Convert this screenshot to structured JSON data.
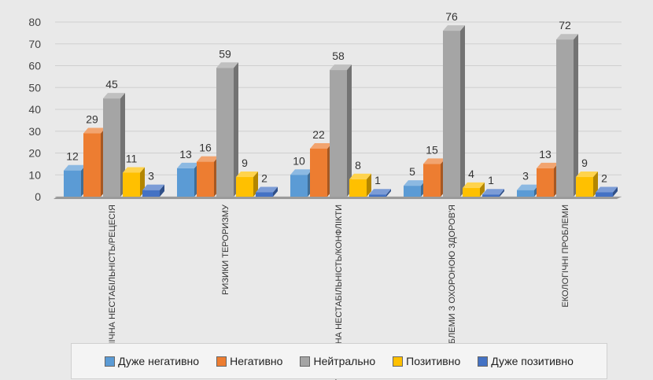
{
  "chart_data": {
    "type": "bar",
    "categories": [
      "ЕКОНОМІЧНА НЕСТАБІЛЬНІСТЬ/РЕЦЕСІЯ",
      "РИЗИКИ ТЕРОРИЗМУ",
      "ПОЛІТИЧНА НЕСТАБІЛЬНІСТЬ/КОНФЛІКТИ",
      "ПРОБЛЕМИ З ОХОРОНОЮ ЗДОРОВ'Я",
      "ЕКОЛОГІЧНІ ПРОБЛЕМИ"
    ],
    "series": [
      {
        "name": "Дуже негативно",
        "color": "#5b9bd5",
        "values": [
          12,
          13,
          10,
          5,
          3
        ]
      },
      {
        "name": "Негативно",
        "color": "#ed7d31",
        "values": [
          29,
          16,
          22,
          15,
          13
        ]
      },
      {
        "name": "Нейтрально",
        "color": "#a5a5a5",
        "values": [
          45,
          59,
          58,
          76,
          72
        ]
      },
      {
        "name": "Позитивно",
        "color": "#ffc000",
        "values": [
          11,
          9,
          8,
          4,
          9
        ]
      },
      {
        "name": "Дуже позитивно",
        "color": "#4472c4",
        "values": [
          3,
          2,
          1,
          1,
          2
        ]
      }
    ],
    "y_ticks": [
      "0",
      "10",
      "20",
      "30",
      "40",
      "50",
      "60",
      "70",
      "80"
    ],
    "ylim": [
      0,
      80
    ],
    "grid": true,
    "legend_position": "bottom",
    "title": "",
    "xlabel": "",
    "ylabel": ""
  }
}
